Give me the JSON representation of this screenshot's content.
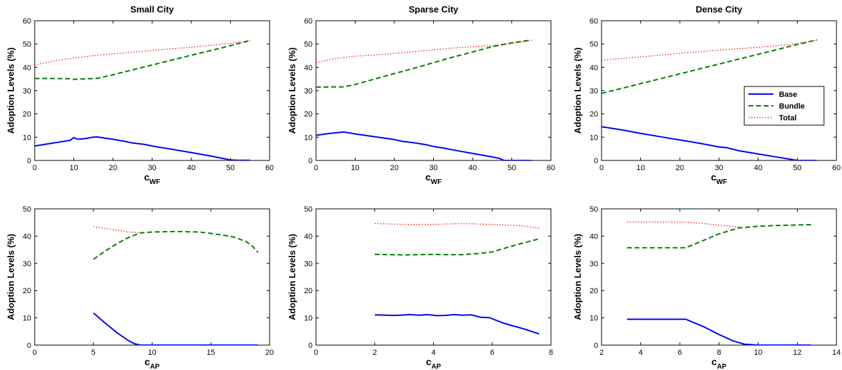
{
  "colors": {
    "base": "#0000ff",
    "bundle": "#008000",
    "total": "#ff0000"
  },
  "chart_data": [
    {
      "type": "line",
      "title": "Small City",
      "xlabel": "c",
      "xlabel_sub": "WF",
      "ylabel": "Adoption Levels (%)",
      "xlim": [
        0,
        60
      ],
      "ylim": [
        0,
        60
      ],
      "xticks": [
        "0",
        "10",
        "20",
        "30",
        "40",
        "50",
        "60"
      ],
      "yticks": [
        "0",
        "10",
        "20",
        "30",
        "40",
        "50",
        "60"
      ],
      "series": [
        {
          "name": "Base",
          "x": [
            0,
            3,
            6,
            9,
            10,
            11,
            13,
            15,
            16,
            18,
            20,
            22,
            23,
            25,
            28,
            30,
            35,
            40,
            45,
            48,
            50,
            52,
            55
          ],
          "y": [
            6.2,
            7,
            7.8,
            8.6,
            9.8,
            9.1,
            9.4,
            10,
            10.1,
            9.6,
            9.1,
            8.5,
            8.2,
            7.5,
            6.9,
            6.2,
            4.8,
            3.4,
            1.9,
            0.9,
            0.2,
            0.1,
            0.1
          ]
        },
        {
          "name": "Bundle",
          "x": [
            0,
            5,
            9,
            10,
            12,
            15,
            16,
            20,
            25,
            30,
            35,
            40,
            45,
            50,
            55
          ],
          "y": [
            35.2,
            35.2,
            35.1,
            34.8,
            35,
            35.2,
            35.3,
            36.8,
            38.9,
            41,
            43.1,
            45.2,
            47.2,
            49.3,
            51.5
          ]
        },
        {
          "name": "Total",
          "x": [
            0,
            5,
            10,
            15,
            20,
            25,
            30,
            35,
            40,
            45,
            50,
            55
          ],
          "y": [
            41,
            42.8,
            44,
            45,
            45.8,
            46.5,
            47.2,
            48,
            48.6,
            49.5,
            50.3,
            51.5
          ]
        }
      ]
    },
    {
      "type": "line",
      "title": "Sparse City",
      "xlabel": "c",
      "xlabel_sub": "WF",
      "ylabel": "Adoption Levels (%)",
      "xlim": [
        0,
        60
      ],
      "ylim": [
        0,
        60
      ],
      "xticks": [
        "0",
        "10",
        "20",
        "30",
        "40",
        "50",
        "60"
      ],
      "yticks": [
        "0",
        "10",
        "20",
        "30",
        "40",
        "50",
        "60"
      ],
      "series": [
        {
          "name": "Base",
          "x": [
            0,
            3,
            7,
            10,
            15,
            20,
            22,
            25,
            28,
            30,
            33,
            35,
            40,
            45,
            47,
            48,
            50,
            55
          ],
          "y": [
            10.8,
            11.5,
            12.2,
            11.4,
            10.2,
            9,
            8.2,
            7.6,
            6.8,
            6,
            5.2,
            4.5,
            3,
            1.5,
            0.8,
            0,
            0,
            0
          ]
        },
        {
          "name": "Bundle",
          "x": [
            0,
            7,
            10,
            15,
            20,
            25,
            30,
            35,
            40,
            45,
            50,
            55
          ],
          "y": [
            31.5,
            31.6,
            32.6,
            35,
            37.3,
            39.6,
            42,
            44.4,
            46.6,
            48.9,
            50.5,
            51.7
          ]
        },
        {
          "name": "Total",
          "x": [
            0,
            5,
            10,
            15,
            20,
            25,
            30,
            35,
            40,
            45,
            50,
            55
          ],
          "y": [
            42,
            43.8,
            44.8,
            45.3,
            46,
            46.7,
            47.5,
            48.3,
            48.8,
            49.4,
            50.2,
            51.6
          ]
        }
      ]
    },
    {
      "type": "line",
      "title": "Dense City",
      "xlabel": "c",
      "xlabel_sub": "WF",
      "ylabel": "Adoption Levels (%)",
      "xlim": [
        0,
        60
      ],
      "ylim": [
        0,
        60
      ],
      "xticks": [
        "0",
        "10",
        "20",
        "30",
        "40",
        "50",
        "60"
      ],
      "yticks": [
        "0",
        "10",
        "20",
        "30",
        "40",
        "50",
        "60"
      ],
      "legend": {
        "placement": "right",
        "entries": [
          "Base",
          "Bundle",
          "Total"
        ]
      },
      "series": [
        {
          "name": "Base",
          "x": [
            0,
            5,
            10,
            15,
            20,
            25,
            30,
            32,
            35,
            40,
            45,
            50,
            55
          ],
          "y": [
            14.5,
            13.2,
            11.6,
            10.2,
            8.8,
            7.4,
            5.8,
            5.5,
            4.2,
            2.8,
            1.4,
            0,
            0
          ]
        },
        {
          "name": "Bundle",
          "x": [
            0,
            10,
            20,
            30,
            40,
            50,
            55
          ],
          "y": [
            28.8,
            33,
            37.2,
            41.4,
            45.6,
            49.8,
            51.8
          ]
        },
        {
          "name": "Total",
          "x": [
            0,
            5,
            10,
            15,
            20,
            25,
            30,
            35,
            40,
            45,
            50,
            55
          ],
          "y": [
            43,
            43.8,
            44.5,
            45.2,
            46,
            46.7,
            47.4,
            48,
            48.6,
            49.3,
            50.2,
            51.6
          ]
        }
      ]
    },
    {
      "type": "line",
      "title": "",
      "xlabel": "c",
      "xlabel_sub": "AP",
      "ylabel": "Adoption Levels (%)",
      "xlim": [
        0,
        20
      ],
      "ylim": [
        0,
        50
      ],
      "xticks": [
        "0",
        "5",
        "10",
        "15",
        "20"
      ],
      "yticks": [
        "0",
        "10",
        "20",
        "30",
        "40",
        "50"
      ],
      "series": [
        {
          "name": "Base",
          "x": [
            5,
            6,
            7,
            8,
            8.5,
            9,
            10,
            12,
            14,
            16,
            18,
            19
          ],
          "y": [
            11.8,
            8.1,
            4.6,
            1.6,
            0.5,
            0,
            0,
            0,
            0,
            0,
            0,
            0
          ]
        },
        {
          "name": "Bundle",
          "x": [
            5,
            6,
            7,
            8,
            9,
            10,
            11,
            12,
            13,
            14,
            15,
            16,
            17,
            18,
            18.5,
            19
          ],
          "y": [
            31.5,
            34.5,
            37.2,
            39.5,
            41.2,
            41.5,
            41.6,
            41.7,
            41.6,
            41.5,
            41,
            40.4,
            39.6,
            38,
            36.5,
            34
          ]
        },
        {
          "name": "Total",
          "x": [
            5,
            6,
            7,
            8,
            9
          ],
          "y": [
            43.5,
            42.8,
            42.2,
            41.5,
            41.3
          ]
        }
      ]
    },
    {
      "type": "line",
      "title": "",
      "xlabel": "c",
      "xlabel_sub": "AP",
      "ylabel": "Adoption Levels (%)",
      "xlim": [
        0,
        8
      ],
      "ylim": [
        0,
        50
      ],
      "xticks": [
        "0",
        "2",
        "4",
        "6",
        "8"
      ],
      "yticks": [
        "0",
        "10",
        "20",
        "30",
        "40",
        "50"
      ],
      "series": [
        {
          "name": "Base",
          "x": [
            2,
            2.4,
            2.7,
            3.2,
            3.5,
            3.8,
            4.1,
            4.4,
            4.7,
            5,
            5.3,
            5.6,
            5.9,
            6.4,
            7,
            7.6
          ],
          "y": [
            11.1,
            11,
            10.9,
            11.2,
            11,
            11.2,
            10.8,
            10.9,
            11.2,
            11,
            11.1,
            10.2,
            10.1,
            8,
            6.2,
            4.1
          ]
        },
        {
          "name": "Bundle",
          "x": [
            2,
            3,
            4,
            4.5,
            5,
            5.5,
            6,
            6.5,
            7,
            7.6
          ],
          "y": [
            33.3,
            33.1,
            33.3,
            33.2,
            33.2,
            33.6,
            34.2,
            35.8,
            37.3,
            39
          ]
        },
        {
          "name": "Total",
          "x": [
            2,
            3,
            4,
            5,
            6,
            7,
            7.6
          ],
          "y": [
            44.6,
            44.3,
            44.3,
            44.6,
            44.3,
            43.8,
            42.9
          ]
        }
      ]
    },
    {
      "type": "line",
      "title": "",
      "xlabel": "c",
      "xlabel_sub": "AP",
      "ylabel": "Adoption Levels (%)",
      "xlim": [
        2,
        14
      ],
      "ylim": [
        0,
        50
      ],
      "xticks": [
        "2",
        "4",
        "6",
        "8",
        "10",
        "12",
        "14"
      ],
      "yticks": [
        "0",
        "10",
        "20",
        "30",
        "40",
        "50"
      ],
      "series": [
        {
          "name": "Base",
          "x": [
            3.3,
            5,
            6.3,
            7.2,
            8,
            8.7,
            9.3,
            10,
            11,
            12.7
          ],
          "y": [
            9.5,
            9.5,
            9.5,
            6.8,
            3.9,
            1.6,
            0.3,
            0,
            0,
            0
          ]
        },
        {
          "name": "Bundle",
          "x": [
            3.3,
            5,
            6.3,
            7,
            8,
            9,
            9.5,
            10,
            11,
            12.7
          ],
          "y": [
            35.7,
            35.7,
            35.7,
            37.8,
            40.8,
            43,
            43.3,
            43.6,
            43.9,
            44.2
          ]
        },
        {
          "name": "Total",
          "x": [
            3.3,
            5,
            6.3,
            7,
            8,
            9
          ],
          "y": [
            45.2,
            45.2,
            45.1,
            44.8,
            44,
            43.3
          ]
        }
      ]
    }
  ]
}
